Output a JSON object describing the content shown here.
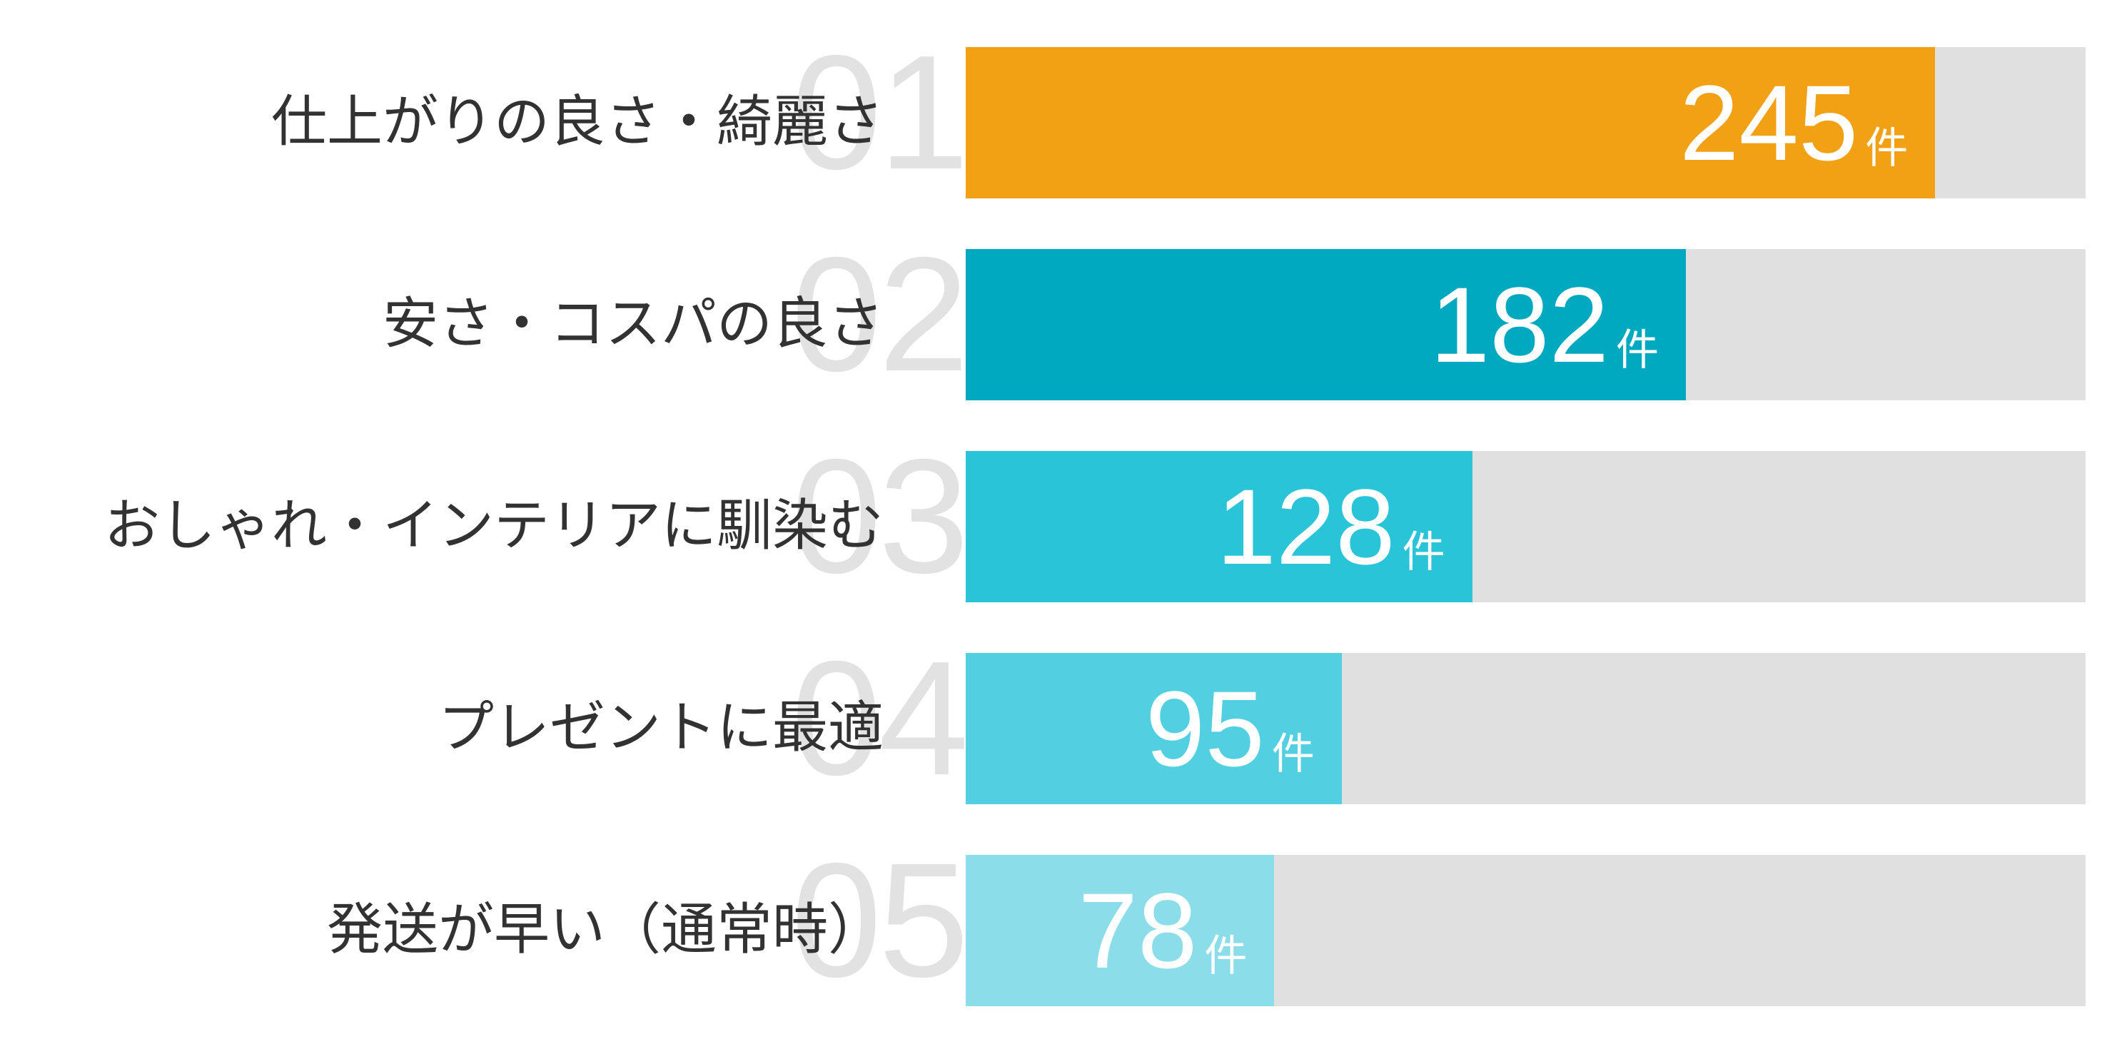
{
  "page": {
    "background": "#FFFFFF"
  },
  "chart_data": {
    "type": "bar",
    "orientation": "horizontal",
    "title": "",
    "xlabel": "",
    "ylabel": "",
    "unit": "件",
    "categories": [
      "仕上がりの良さ・綺麗さ",
      "安さ・コスパの良さ",
      "おしゃれ・インテリアに馴染む",
      "プレゼントに最適",
      "発送が早い（通常時）"
    ],
    "values": [
      245,
      182,
      128,
      95,
      78
    ],
    "rank_labels": [
      "01",
      "02",
      "03",
      "04",
      "05"
    ],
    "bar_colors": [
      "#F2A014",
      "#00A9BF",
      "#2AC4D8",
      "#52D0E1",
      "#8BDEE9"
    ],
    "track_color": "#E0E0E0",
    "rank_number_color": "#E2E2E2",
    "label_color": "#323232",
    "value_text_color": "#FFFFFF",
    "xlim": [
      0,
      283
    ],
    "grid": false,
    "legend": false
  }
}
